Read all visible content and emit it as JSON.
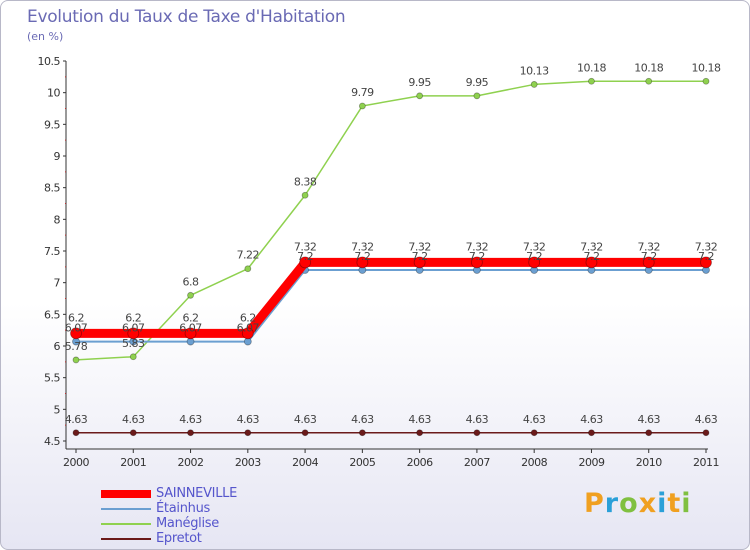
{
  "chart_data": {
    "type": "line",
    "title": "Evolution du Taux de Taxe d'Habitation",
    "ylabel": "(en %)",
    "xlabel": "",
    "categories": [
      "2000",
      "2001",
      "2002",
      "2003",
      "2004",
      "2005",
      "2006",
      "2007",
      "2008",
      "2009",
      "2010",
      "2011"
    ],
    "ylim": [
      4.5,
      10.5
    ],
    "yticks": [
      "4.5",
      "5",
      "5.5",
      "6",
      "6.5",
      "7",
      "7.5",
      "8",
      "8.5",
      "9",
      "9.5",
      "10",
      "10.5"
    ],
    "series": [
      {
        "name": "Epretot",
        "color": "#6b1a1a",
        "values": [
          4.63,
          4.63,
          4.63,
          4.63,
          4.63,
          4.63,
          4.63,
          4.63,
          4.63,
          4.63,
          4.63,
          4.63
        ],
        "labels": [
          "4.63",
          "4.63",
          "4.63",
          "4.63",
          "4.63",
          "4.63",
          "4.63",
          "4.63",
          "4.63",
          "4.63",
          "4.63",
          "4.63"
        ]
      },
      {
        "name": "Manéglise",
        "color": "#8fd14f",
        "values": [
          5.78,
          5.83,
          6.8,
          7.22,
          8.38,
          9.79,
          9.95,
          9.95,
          10.13,
          10.18,
          10.18,
          10.18
        ],
        "labels": [
          "5.78",
          "5.83",
          "6.8",
          "7.22",
          "8.38",
          "9.79",
          "9.95",
          "9.95",
          "10.13",
          "10.18",
          "10.18",
          "10.18"
        ]
      },
      {
        "name": "Étainhus",
        "color": "#6b9fd1",
        "values": [
          6.07,
          6.07,
          6.07,
          6.07,
          7.2,
          7.2,
          7.2,
          7.2,
          7.2,
          7.2,
          7.2,
          7.2
        ],
        "labels": [
          "6.07",
          "6.07",
          "6.07",
          "6.07",
          "7.2",
          "7.2",
          "7.2",
          "7.2",
          "7.2",
          "7.2",
          "7.2",
          "7.2"
        ]
      },
      {
        "name": "SAINNEVILLE",
        "color": "#ff0000",
        "values": [
          6.2,
          6.2,
          6.2,
          6.2,
          7.32,
          7.32,
          7.32,
          7.32,
          7.32,
          7.32,
          7.32,
          7.32
        ],
        "labels": [
          "6.2",
          "6.2",
          "6.2",
          "6.2",
          "7.32",
          "7.32",
          "7.32",
          "7.32",
          "7.32",
          "7.32",
          "7.32",
          "7.32"
        ]
      }
    ],
    "legend": [
      "SAINNEVILLE",
      "Étainhus",
      "Manéglise",
      "Epretot"
    ],
    "legend_position": "bottom-left",
    "grid": false
  },
  "brand": {
    "letters": [
      "P",
      "r",
      "o",
      "x",
      "i",
      "t",
      "i"
    ],
    "colors": [
      "#f0a020",
      "#2aa0d8",
      "#80c040",
      "#f0a020",
      "#2aa0d8",
      "#f0a020",
      "#80c040"
    ]
  }
}
